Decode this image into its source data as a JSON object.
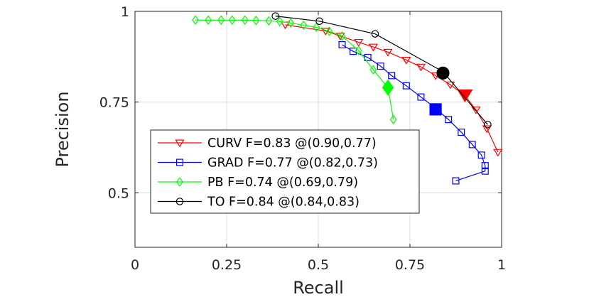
{
  "chart_data": {
    "type": "line",
    "xlabel": "Recall",
    "ylabel": "Precision",
    "xlim": [
      0,
      1
    ],
    "ylim": [
      0.35,
      1
    ],
    "xticks": [
      0,
      0.25,
      0.5,
      0.75,
      1
    ],
    "xtick_labels": [
      "0",
      "0.25",
      "0.5",
      "0.75",
      "1"
    ],
    "yticks": [
      0.5,
      0.75,
      1
    ],
    "ytick_labels": [
      "0.5",
      "0.75",
      "1"
    ],
    "grid": true,
    "legend_position": "bottom-left",
    "series": [
      {
        "name": "CURV",
        "label": "CURV F=0.83 @(0.90,0.77)",
        "color": "#ff0000",
        "marker": "triangle-down",
        "best": [
          0.9,
          0.77
        ],
        "x": [
          0.41,
          0.52,
          0.56,
          0.61,
          0.65,
          0.69,
          0.74,
          0.78,
          0.82,
          0.86,
          0.9,
          0.93,
          0.96,
          0.99
        ],
        "y": [
          0.963,
          0.946,
          0.932,
          0.915,
          0.902,
          0.888,
          0.866,
          0.847,
          0.823,
          0.798,
          0.768,
          0.729,
          0.677,
          0.612
        ]
      },
      {
        "name": "GRAD",
        "label": "GRAD F=0.77 @(0.82,0.73)",
        "color": "#0000ff",
        "marker": "square",
        "best": [
          0.82,
          0.73
        ],
        "x": [
          0.565,
          0.595,
          0.635,
          0.67,
          0.7,
          0.74,
          0.78,
          0.82,
          0.855,
          0.89,
          0.92,
          0.945,
          0.955,
          0.955,
          0.875
        ],
        "y": [
          0.908,
          0.89,
          0.873,
          0.849,
          0.823,
          0.795,
          0.764,
          0.733,
          0.702,
          0.667,
          0.633,
          0.604,
          0.575,
          0.56,
          0.533
        ]
      },
      {
        "name": "PB",
        "label": "PB F=0.74 @(0.69,0.79)",
        "color": "#00ff00",
        "marker": "diamond",
        "best": [
          0.69,
          0.79
        ],
        "x": [
          0.165,
          0.2,
          0.235,
          0.265,
          0.3,
          0.33,
          0.365,
          0.395,
          0.425,
          0.46,
          0.495,
          0.53,
          0.565,
          0.61,
          0.65,
          0.69,
          0.705
        ],
        "y": [
          0.976,
          0.976,
          0.976,
          0.976,
          0.976,
          0.975,
          0.974,
          0.972,
          0.968,
          0.962,
          0.956,
          0.945,
          0.932,
          0.892,
          0.839,
          0.79,
          0.702
        ]
      },
      {
        "name": "TO",
        "label": "TO F=0.84 @(0.84,0.83)",
        "color": "#000000",
        "marker": "circle",
        "best": [
          0.84,
          0.83
        ],
        "x": [
          0.383,
          0.503,
          0.655,
          0.84,
          0.962
        ],
        "y": [
          0.987,
          0.973,
          0.938,
          0.834,
          0.688
        ]
      }
    ]
  }
}
